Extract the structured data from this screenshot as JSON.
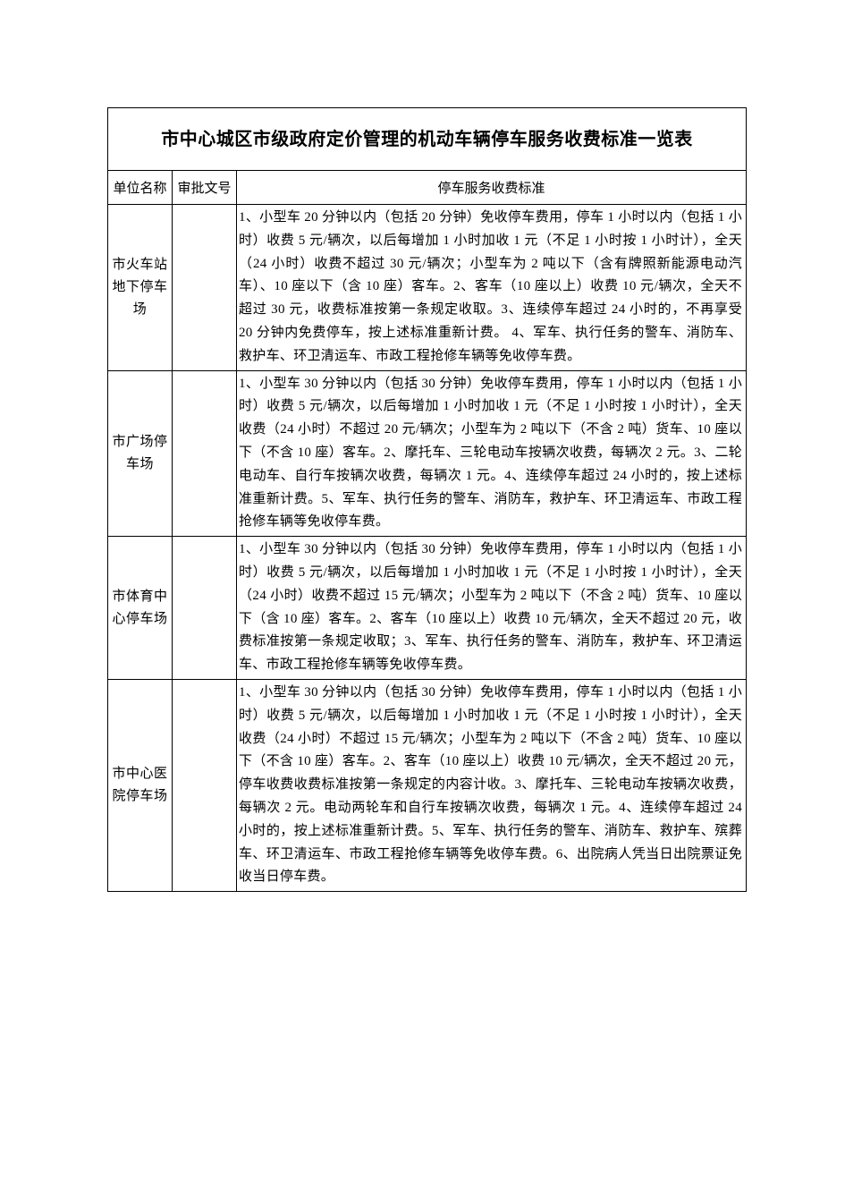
{
  "table": {
    "title": "市中心城区市级政府定价管理的机动车辆停车服务收费标准一览表",
    "headers": {
      "unit": "单位名称",
      "approval": "审批文号",
      "standard": "停车服务收费标准"
    },
    "rows": [
      {
        "unit": "市火车站地下停车场",
        "approval": "",
        "standard": "1、小型车 20 分钟以内（包括 20 分钟）免收停车费用，停车 1 小时以内（包括 1 小时）收费 5 元/辆次，以后每增加 1 小时加收 1 元（不足 1 小时按 1 小时计），全天（24 小时）收费不超过 30 元/辆次；小型车为 2 吨以下（含有牌照新能源电动汽车）、10 座以下（含 10 座）客车。2、客车（10 座以上）收费 10 元/辆次，全天不超过 30 元，收费标准按第一条规定收取。3、连续停车超过 24 小时的，不再享受 20 分钟内免费停车，按上述标准重新计费。 4、军车、执行任务的警车、消防车、救护车、环卫清运车、市政工程抢修车辆等免收停车费。"
      },
      {
        "unit": "市广场停车场",
        "approval": "",
        "standard": "1、小型车 30 分钟以内（包括 30 分钟）免收停车费用，停车 1 小时以内（包括 1 小时）收费 5 元/辆次，以后每增加 1 小时加收 1 元（不足 1 小时按 1 小时计），全天收费（24 小时）不超过 20 元/辆次；小型车为 2 吨以下（不含 2 吨）货车、10 座以下（不含 10 座）客车。2、摩托车、三轮电动车按辆次收费，每辆次 2 元。3、二轮电动车、自行车按辆次收费，每辆次 1 元。4、连续停车超过 24 小时的，按上述标准重新计费。5、军车、执行任务的警车、消防车，救护车、环卫清运车、市政工程抢修车辆等免收停车费。"
      },
      {
        "unit": "市体育中心停车场",
        "approval": "",
        "standard": "1、小型车 30 分钟以内（包括 30 分钟）免收停车费用，停车 1 小时以内（包括 1 小时）收费 5 元/辆次，以后每增加 1 小时加收 1 元（不足 1 小时按 1 小时计），全天（24 小时）收费不超过 15 元/辆次；小型车为 2 吨以下（不含 2 吨）货车、10 座以下（含 10 座）客车。2、客车（10 座以上）收费 10 元/辆次，全天不超过 20 元，收费标准按第一条规定收取；3、军车、执行任务的警车、消防车，救护车、环卫清运车、市政工程抢修车辆等免收停车费。"
      },
      {
        "unit": "市中心医院停车场",
        "approval": "",
        "standard": "1、小型车 30 分钟以内（包括 30 分钟）免收停车费用，停车 1 小时以内（包括 1 小时）收费 5 元/辆次，以后每增加 1 小时加收 1 元（不足 1 小时按 1 小时计），全天收费（24 小时）不超过 15 元/辆次；小型车为 2 吨以下（不含 2 吨）货车、10 座以下（不含 10 座）客车。2、客车（10 座以上）收费 10 元/辆次，全天不超过 20 元，停车收费收费标准按第一条规定的内容计收。3、摩托车、三轮电动车按辆次收费，每辆次 2 元。电动两轮车和自行车按辆次收费，每辆次 1 元。4、连续停车超过 24 小时的，按上述标准重新计费。5、军车、执行任务的警车、消防车、救护车、殡葬车、环卫清运车、市政工程抢修车辆等免收停车费。6、出院病人凭当日出院票证免收当日停车费。"
      }
    ]
  }
}
